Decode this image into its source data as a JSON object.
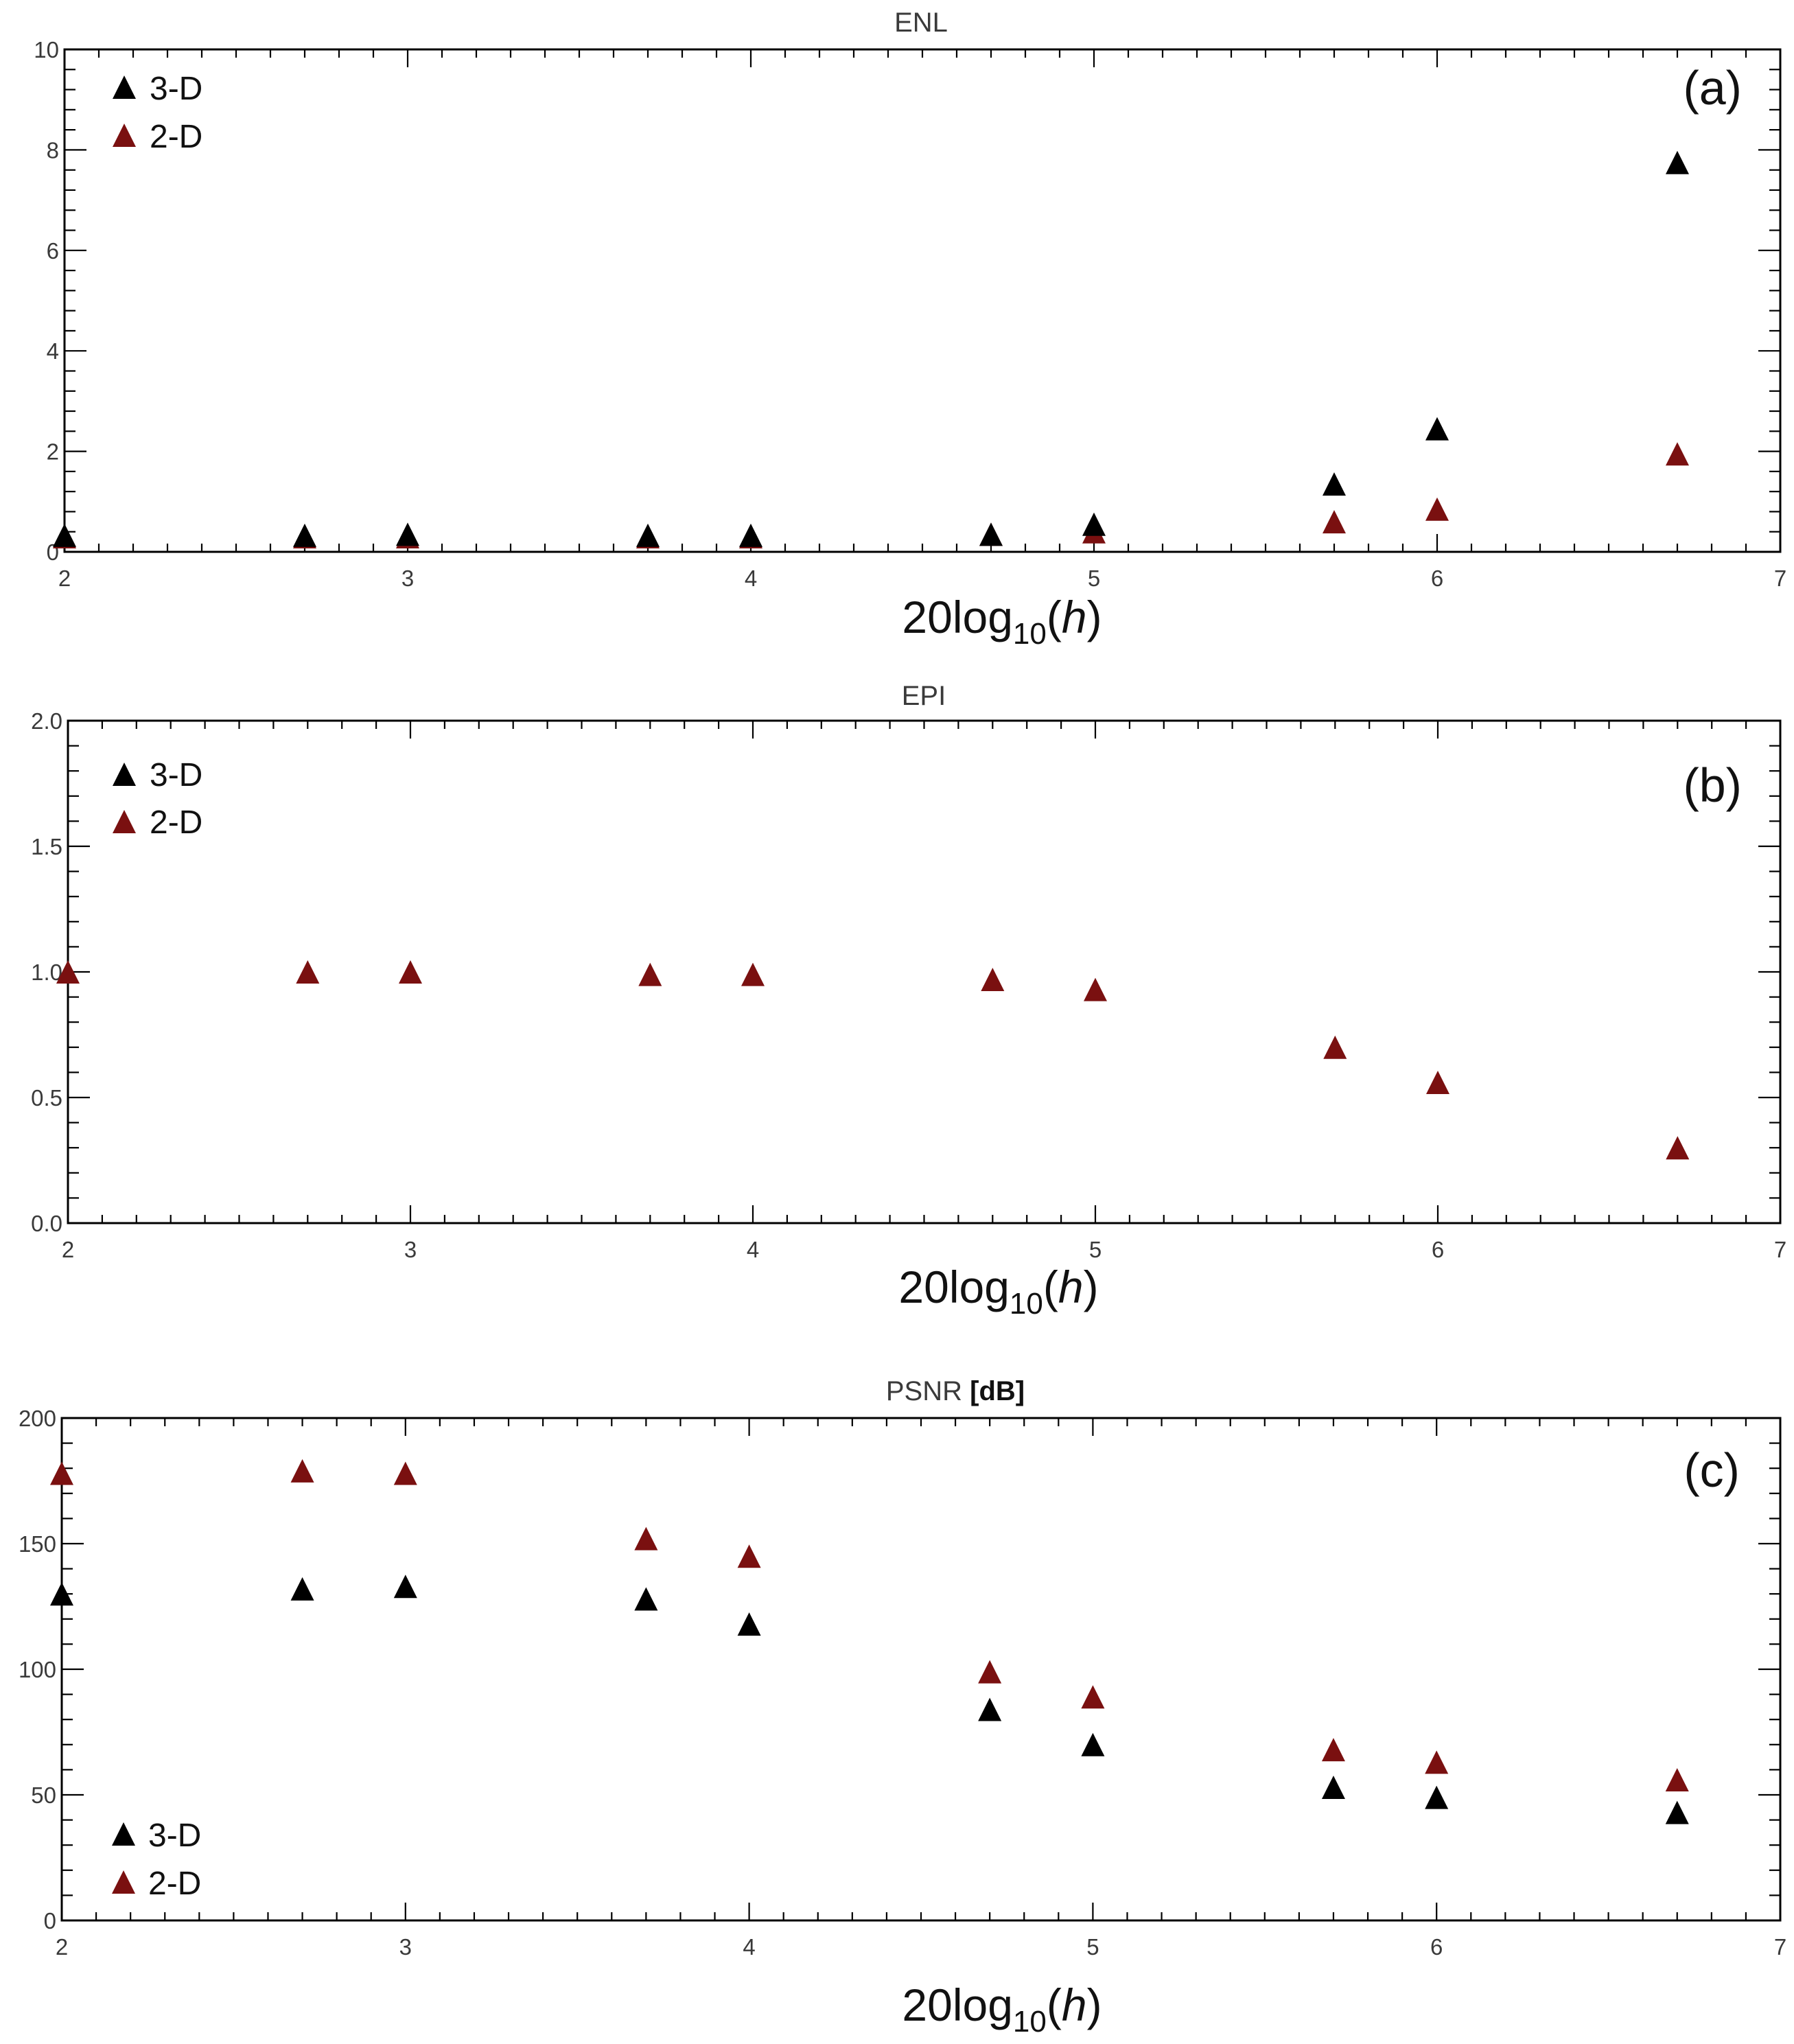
{
  "colors": {
    "series_3d": "#000000",
    "series_2d": "#7a1010",
    "axis": "#000000"
  },
  "chart_data": [
    {
      "type": "scatter",
      "title": "ENL",
      "title_unit": "",
      "panel_label": "(a)",
      "xlabel": {
        "base": "20log",
        "sub": "10",
        "open": "(",
        "var": "h",
        "close": ")"
      },
      "xlim": [
        2,
        7
      ],
      "ylim": [
        0,
        10
      ],
      "xticks": [
        "2",
        "3",
        "4",
        "5",
        "6",
        "7"
      ],
      "yticks": [
        "0",
        "2",
        "4",
        "6",
        "8",
        "10"
      ],
      "legend_position": "top-left",
      "series": [
        {
          "name": "3-D",
          "x": [
            2.0,
            2.7,
            3.0,
            3.7,
            4.0,
            4.7,
            5.0,
            5.7,
            6.0,
            6.7
          ],
          "values": [
            0.33,
            0.33,
            0.35,
            0.33,
            0.33,
            0.35,
            0.55,
            1.35,
            2.45,
            7.75
          ]
        },
        {
          "name": "2-D",
          "x": [
            2.0,
            2.7,
            3.0,
            3.7,
            4.0,
            4.7,
            5.0,
            5.7,
            6.0,
            6.7
          ],
          "values": [
            0.3,
            0.3,
            0.3,
            0.3,
            0.3,
            0.35,
            0.4,
            0.6,
            0.85,
            1.95
          ]
        }
      ]
    },
    {
      "type": "scatter",
      "title": "EPI",
      "title_unit": "",
      "panel_label": "(b)",
      "xlabel": {
        "base": "20log",
        "sub": "10",
        "open": "(",
        "var": "h",
        "close": ")"
      },
      "xlim": [
        2,
        7
      ],
      "ylim": [
        0,
        2
      ],
      "xticks": [
        "2",
        "3",
        "4",
        "5",
        "6",
        "7"
      ],
      "yticks": [
        "0.0",
        "0.5",
        "1.0",
        "1.5",
        "2.0"
      ],
      "legend_position": "top-left",
      "series": [
        {
          "name": "3-D",
          "x": [],
          "values": []
        },
        {
          "name": "2-D",
          "x": [
            2.0,
            2.7,
            3.0,
            3.7,
            4.0,
            4.7,
            5.0,
            5.7,
            6.0,
            6.7
          ],
          "values": [
            1.0,
            1.0,
            1.0,
            0.99,
            0.99,
            0.97,
            0.93,
            0.7,
            0.56,
            0.3
          ]
        }
      ]
    },
    {
      "type": "scatter",
      "title": "PSNR",
      "title_unit": "[dB]",
      "panel_label": "(c)",
      "xlabel": {
        "base": "20log",
        "sub": "10",
        "open": "(",
        "var": "h",
        "close": ")"
      },
      "xlim": [
        2,
        7
      ],
      "ylim": [
        0,
        200
      ],
      "xticks": [
        "2",
        "3",
        "4",
        "5",
        "6",
        "7"
      ],
      "yticks": [
        "0",
        "50",
        "100",
        "150",
        "200"
      ],
      "legend_position": "bottom-left",
      "series": [
        {
          "name": "3-D",
          "x": [
            2.0,
            2.7,
            3.0,
            3.7,
            4.0,
            4.7,
            5.0,
            5.7,
            6.0,
            6.7
          ],
          "values": [
            130,
            132,
            133,
            128,
            118,
            84,
            70,
            53,
            49,
            43
          ]
        },
        {
          "name": "2-D",
          "x": [
            2.0,
            2.7,
            3.0,
            3.7,
            4.0,
            4.7,
            5.0,
            5.7,
            6.0,
            6.7
          ],
          "values": [
            178,
            179,
            178,
            152,
            145,
            99,
            89,
            68,
            63,
            56
          ]
        }
      ]
    }
  ]
}
